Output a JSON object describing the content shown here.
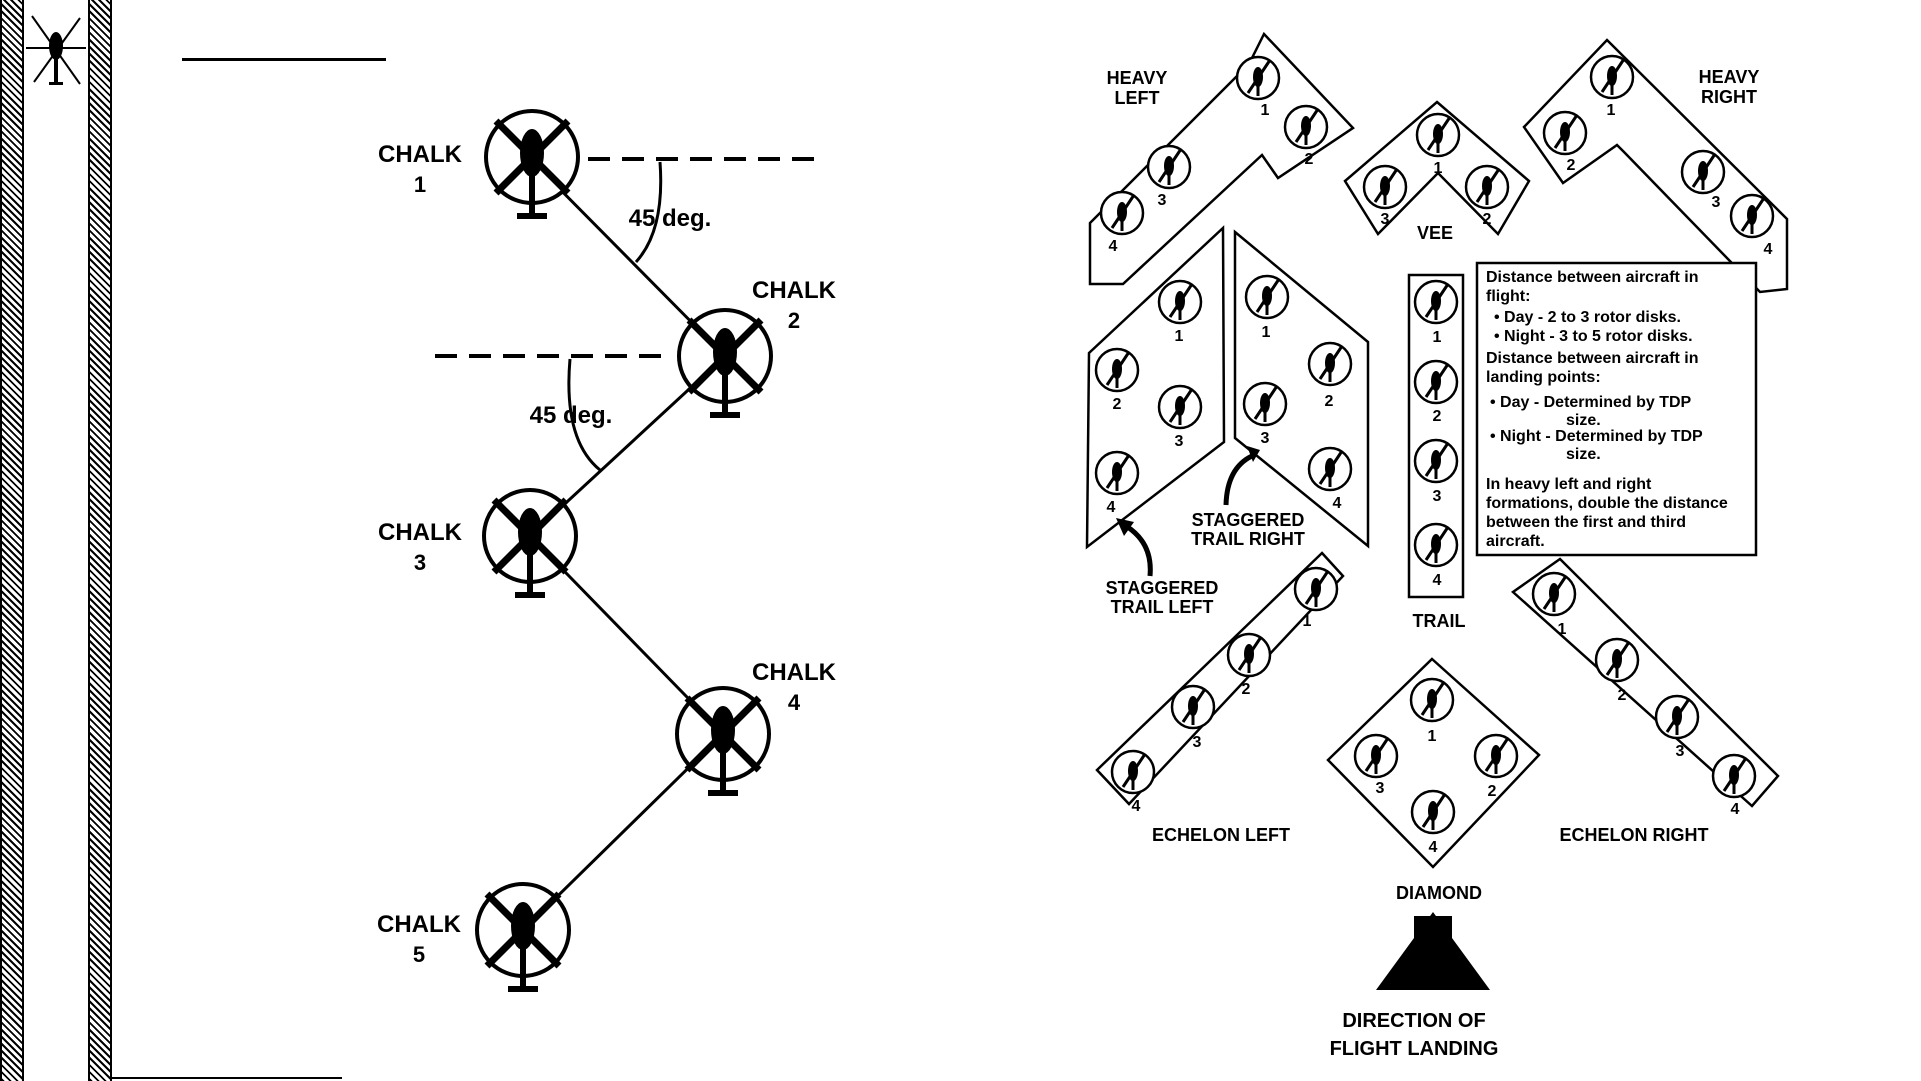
{
  "chalk_diagram": {
    "chalks": [
      {
        "name": "CHALK",
        "number": "1"
      },
      {
        "name": "CHALK",
        "number": "2"
      },
      {
        "name": "CHALK",
        "number": "3"
      },
      {
        "name": "CHALK",
        "number": "4"
      },
      {
        "name": "CHALK",
        "number": "5"
      }
    ],
    "angle_labels": [
      "45 deg.",
      "45 deg."
    ]
  },
  "formations": {
    "heavy_left": {
      "title": [
        "HEAVY",
        "LEFT"
      ],
      "positions": [
        "1",
        "2",
        "3",
        "4"
      ]
    },
    "vee": {
      "title": "VEE",
      "positions": [
        "1",
        "2",
        "3"
      ]
    },
    "heavy_right": {
      "title": [
        "HEAVY",
        "RIGHT"
      ],
      "positions": [
        "1",
        "2",
        "3",
        "4"
      ]
    },
    "staggered_trail_left": {
      "title": [
        "STAGGERED",
        "TRAIL LEFT"
      ],
      "positions": [
        "1",
        "2",
        "3",
        "4"
      ]
    },
    "staggered_trail_right": {
      "title": [
        "STAGGERED",
        "TRAIL RIGHT"
      ],
      "positions": [
        "1",
        "2",
        "3",
        "4"
      ]
    },
    "trail": {
      "title": "TRAIL",
      "positions": [
        "1",
        "2",
        "3",
        "4"
      ]
    },
    "echelon_left": {
      "title": "ECHELON LEFT",
      "positions": [
        "1",
        "2",
        "3",
        "4"
      ]
    },
    "diamond": {
      "title": "DIAMOND",
      "positions": [
        "1",
        "2",
        "3",
        "4"
      ]
    },
    "echelon_right": {
      "title": "ECHELON RIGHT",
      "positions": [
        "1",
        "2",
        "3",
        "4"
      ]
    }
  },
  "info_box": {
    "lines": [
      "Distance between aircraft in",
      "flight:",
      "•  Day - 2 to 3 rotor disks.",
      "•  Night - 3 to 5 rotor disks.",
      "Distance between aircraft in",
      "landing points:",
      "•  Day    - Determined by TDP",
      "size.",
      "•  Night - Determined by TDP",
      "size.",
      "In heavy left and right",
      "formations, double the distance",
      "between the first and third",
      "aircraft."
    ]
  },
  "direction": {
    "line1": "DIRECTION OF",
    "line2": "FLIGHT LANDING"
  }
}
